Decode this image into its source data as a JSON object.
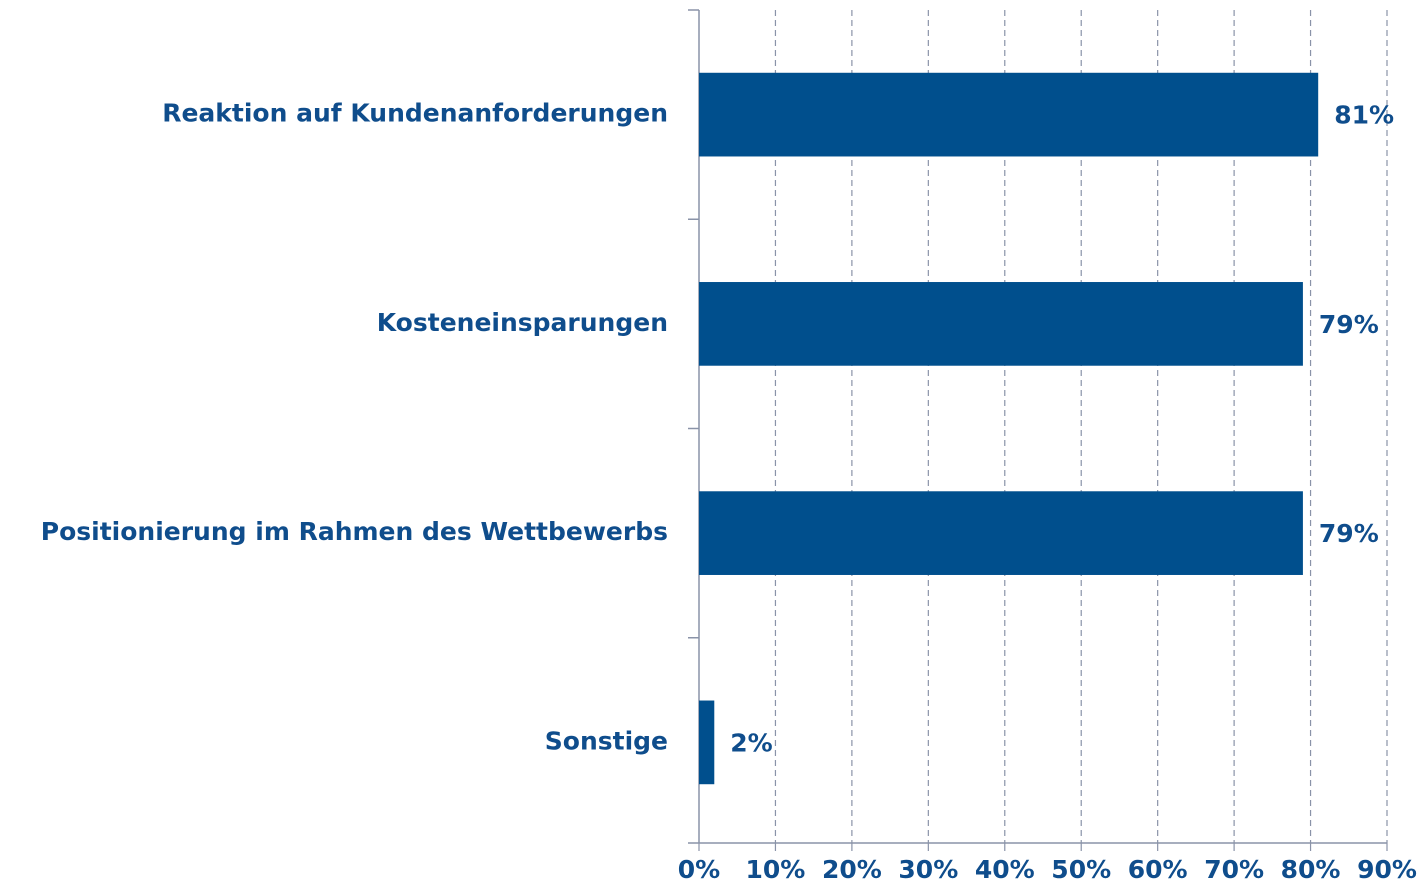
{
  "chart_data": {
    "type": "bar",
    "orientation": "horizontal",
    "categories": [
      "Reaktion auf Kundenanforderungen",
      "Kosteneinsparungen",
      "Positionierung im Rahmen des Wettbewerbs",
      "Sonstige"
    ],
    "values": [
      81,
      79,
      79,
      2
    ],
    "value_labels": [
      "81%",
      "79%",
      "79%",
      "2%"
    ],
    "color": "#004f8d",
    "xlim": [
      0,
      90
    ],
    "xticks": [
      {
        "value": 0,
        "label": "0%"
      },
      {
        "value": 10,
        "label": "10%"
      },
      {
        "value": 20,
        "label": "20%"
      },
      {
        "value": 30,
        "label": "30%"
      },
      {
        "value": 40,
        "label": "40%"
      },
      {
        "value": 50,
        "label": "50%"
      },
      {
        "value": 60,
        "label": "60%"
      },
      {
        "value": 70,
        "label": "70%"
      },
      {
        "value": 80,
        "label": "80%"
      },
      {
        "value": 90,
        "label": "90%"
      }
    ],
    "grid": true
  }
}
